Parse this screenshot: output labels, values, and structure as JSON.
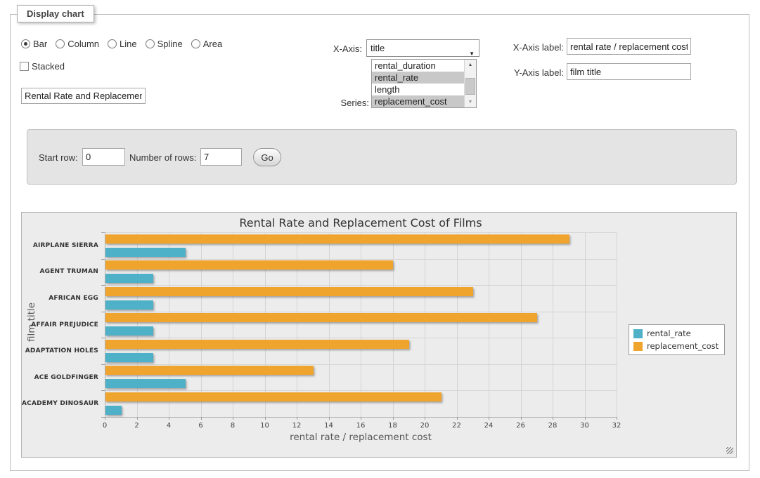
{
  "window": {
    "legend": "Display chart"
  },
  "controls": {
    "chart_types": [
      {
        "label": "Bar",
        "selected": true
      },
      {
        "label": "Column",
        "selected": false
      },
      {
        "label": "Line",
        "selected": false
      },
      {
        "label": "Spline",
        "selected": false
      },
      {
        "label": "Area",
        "selected": false
      }
    ],
    "stacked": {
      "label": "Stacked",
      "checked": false
    },
    "title_input": {
      "value": "Rental Rate and Replacement Cost of Films"
    },
    "x_axis": {
      "label": "X-Axis:",
      "selected": "title"
    },
    "series_select": {
      "label": "Series:",
      "options": [
        {
          "label": "rental_duration",
          "selected": false
        },
        {
          "label": "rental_rate",
          "selected": true
        },
        {
          "label": "length",
          "selected": false
        },
        {
          "label": "replacement_cost",
          "selected": true
        }
      ]
    },
    "x_axis_label": {
      "label": "X-Axis label:",
      "value": "rental rate / replacement cost"
    },
    "y_axis_label": {
      "label": "Y-Axis label:",
      "value": "film title"
    }
  },
  "pagination": {
    "start_row_label": "Start row:",
    "start_row_value": "0",
    "num_rows_label": "Number of rows:",
    "num_rows_value": "7",
    "go_label": "Go"
  },
  "chart_data": {
    "type": "bar",
    "title": "Rental Rate and Replacement Cost of Films",
    "xlabel": "rental rate / replacement cost",
    "ylabel": "film title",
    "categories": [
      "AIRPLANE SIERRA",
      "AGENT TRUMAN",
      "AFRICAN EGG",
      "AFFAIR PREJUDICE",
      "ADAPTATION HOLES",
      "ACE GOLDFINGER",
      "ACADEMY DINOSAUR"
    ],
    "series": [
      {
        "name": "rental_rate",
        "color": "#4FB1C7",
        "values": [
          4.99,
          2.99,
          2.99,
          2.99,
          2.99,
          4.99,
          0.99
        ]
      },
      {
        "name": "replacement_cost",
        "color": "#EFA42E",
        "values": [
          28.99,
          17.99,
          22.99,
          26.99,
          18.99,
          12.99,
          20.99
        ]
      }
    ],
    "xlim": [
      0,
      32
    ],
    "xtick_step": 2,
    "grid": true,
    "legend_position": "right"
  }
}
